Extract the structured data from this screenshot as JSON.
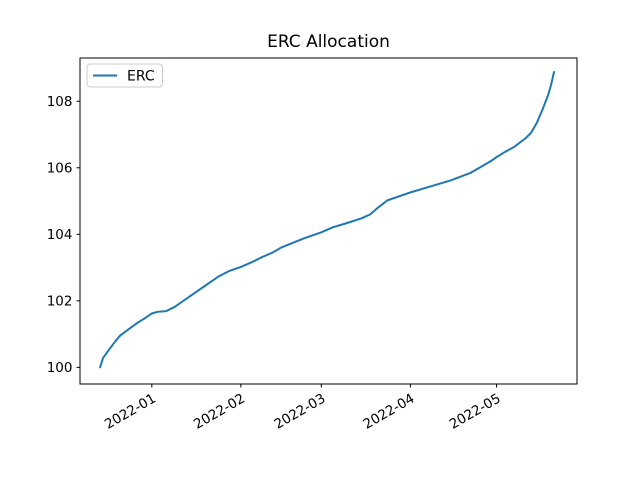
{
  "chart_data": {
    "type": "line",
    "title": "ERC Allocation",
    "xlabel": "",
    "ylabel": "",
    "grid": false,
    "legend": {
      "position": "upper left",
      "entries": [
        "ERC"
      ]
    },
    "colors": {
      "line": "#1f77b4",
      "spine": "#000000",
      "legend_border": "#cccccc",
      "background": "#ffffff"
    },
    "xlim": [
      "2021-12-07",
      "2022-05-29"
    ],
    "ylim": [
      99.5,
      109.3
    ],
    "yticks": [
      100,
      102,
      104,
      106,
      108
    ],
    "xticks": [
      {
        "date": "2022-01-01",
        "label": "2022-01"
      },
      {
        "date": "2022-02-01",
        "label": "2022-02"
      },
      {
        "date": "2022-03-01",
        "label": "2022-03"
      },
      {
        "date": "2022-04-01",
        "label": "2022-04"
      },
      {
        "date": "2022-05-01",
        "label": "2022-05"
      }
    ],
    "series": [
      {
        "name": "ERC",
        "color": "#1f77b4",
        "x": [
          "2021-12-14",
          "2021-12-15",
          "2021-12-17",
          "2021-12-19",
          "2021-12-21",
          "2021-12-24",
          "2021-12-27",
          "2021-12-30",
          "2022-01-01",
          "2022-01-03",
          "2022-01-06",
          "2022-01-09",
          "2022-01-12",
          "2022-01-16",
          "2022-01-20",
          "2022-01-24",
          "2022-01-28",
          "2022-02-01",
          "2022-02-05",
          "2022-02-08",
          "2022-02-12",
          "2022-02-15",
          "2022-02-19",
          "2022-02-23",
          "2022-03-01",
          "2022-03-05",
          "2022-03-10",
          "2022-03-15",
          "2022-03-18",
          "2022-03-21",
          "2022-03-24",
          "2022-03-28",
          "2022-04-01",
          "2022-04-08",
          "2022-04-15",
          "2022-04-22",
          "2022-04-26",
          "2022-04-29",
          "2022-05-01",
          "2022-05-04",
          "2022-05-07",
          "2022-05-09",
          "2022-05-11",
          "2022-05-13",
          "2022-05-15",
          "2022-05-17",
          "2022-05-19",
          "2022-05-20",
          "2022-05-21"
        ],
        "y": [
          100.0,
          100.28,
          100.52,
          100.75,
          100.96,
          101.15,
          101.34,
          101.5,
          101.62,
          101.67,
          101.69,
          101.82,
          102.0,
          102.24,
          102.48,
          102.72,
          102.9,
          103.02,
          103.17,
          103.3,
          103.45,
          103.6,
          103.74,
          103.88,
          104.06,
          104.21,
          104.34,
          104.48,
          104.6,
          104.82,
          105.02,
          105.14,
          105.26,
          105.44,
          105.62,
          105.85,
          106.05,
          106.2,
          106.32,
          106.48,
          106.62,
          106.75,
          106.88,
          107.05,
          107.35,
          107.75,
          108.2,
          108.5,
          108.88
        ]
      }
    ]
  }
}
